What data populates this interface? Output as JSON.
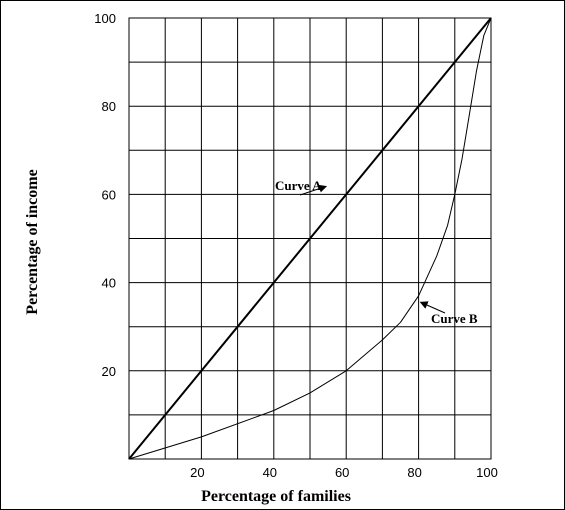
{
  "chart_data": {
    "type": "line",
    "xlabel": "Percentage of families",
    "ylabel": "Percentage of income",
    "xlim": [
      0,
      100
    ],
    "ylim": [
      0,
      100
    ],
    "x_ticks": [
      "20",
      "40",
      "60",
      "80",
      "100"
    ],
    "y_ticks": [
      "20",
      "40",
      "60",
      "80",
      "100"
    ],
    "grid": true,
    "series": [
      {
        "name": "Curve A",
        "x": [
          0,
          100
        ],
        "y": [
          0,
          100
        ]
      },
      {
        "name": "Curve B",
        "x": [
          0,
          20,
          40,
          50,
          60,
          70,
          75,
          80,
          85,
          88,
          90,
          92,
          94,
          96,
          98,
          100
        ],
        "y": [
          0,
          5,
          11,
          15,
          20,
          27,
          31,
          37,
          46,
          53,
          60,
          68,
          78,
          88,
          96,
          100
        ]
      }
    ],
    "annotations": [
      {
        "text": "Curve A",
        "x": 55,
        "y": 60
      },
      {
        "text": "Curve B",
        "x": 80,
        "y": 36
      }
    ],
    "colors": {
      "line": "#000000",
      "grid": "#000000"
    }
  }
}
